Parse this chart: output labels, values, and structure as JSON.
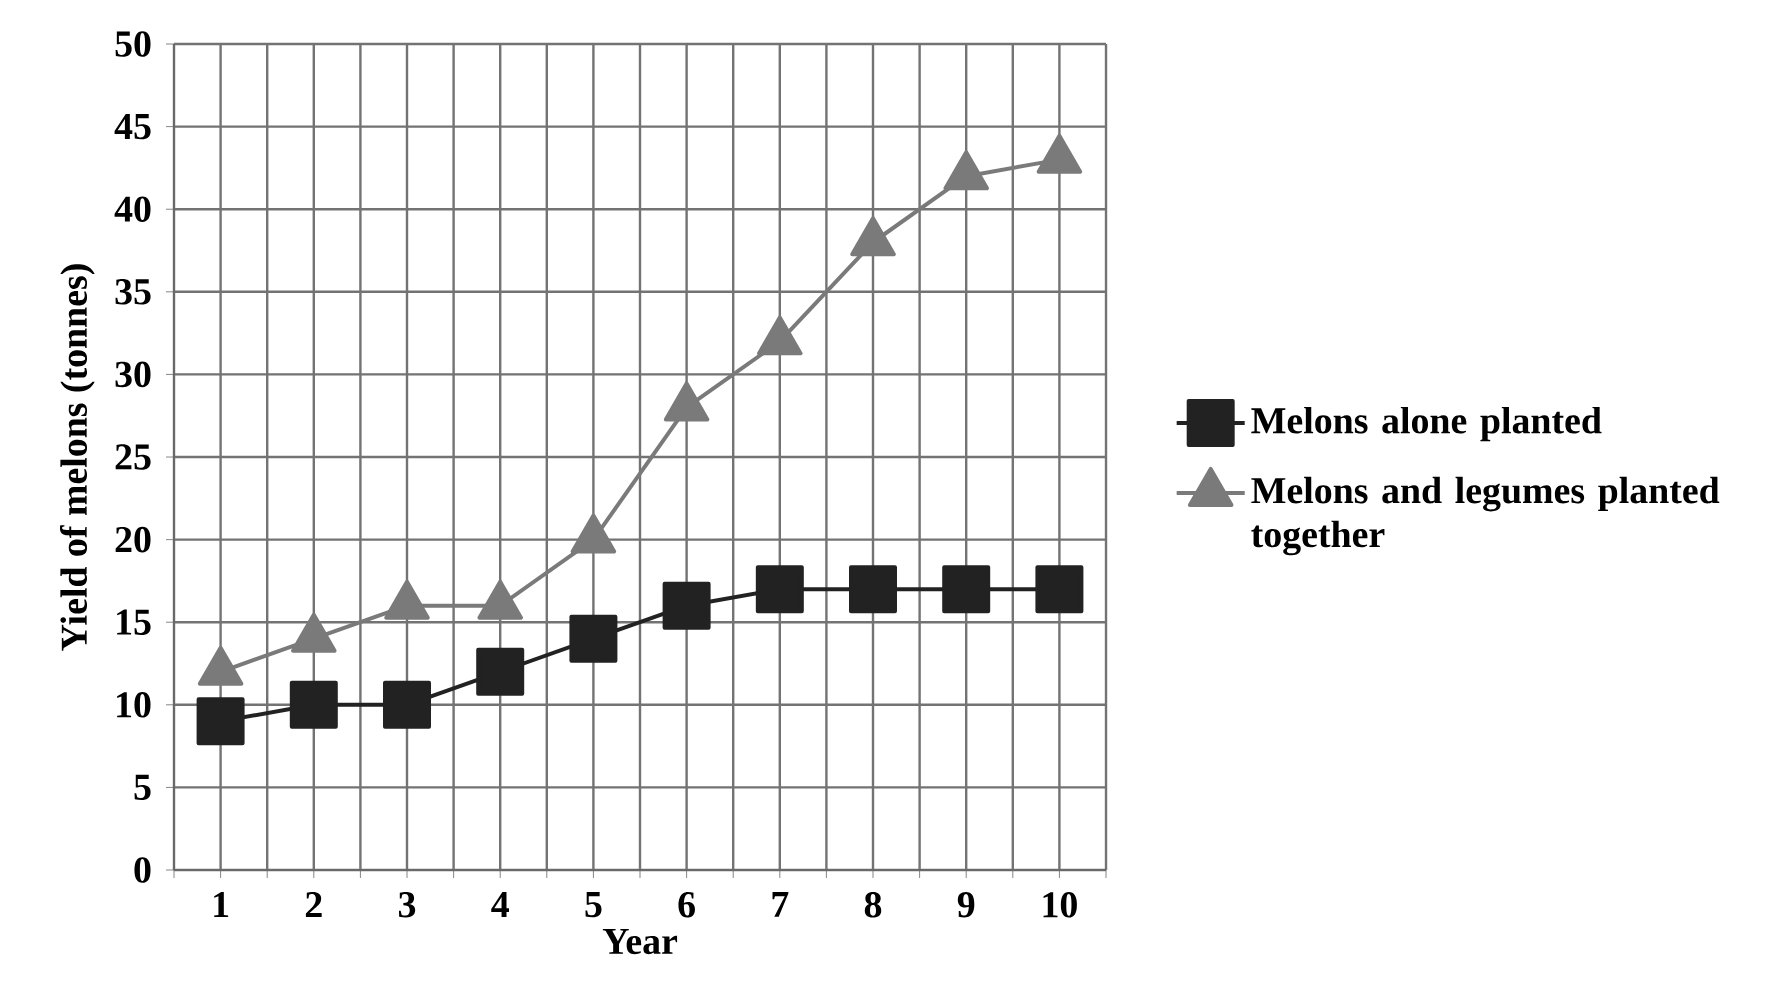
{
  "chart_data": {
    "type": "line",
    "xlabel": "Year",
    "ylabel": "Yield of melons (tonnes)",
    "x": [
      1,
      2,
      3,
      4,
      5,
      6,
      7,
      8,
      9,
      10
    ],
    "series": [
      {
        "name": "Melons alone planted",
        "color": "#222222",
        "marker": "square",
        "values": [
          9,
          10,
          10,
          12,
          14,
          16,
          17,
          17,
          17,
          17
        ]
      },
      {
        "name": "Melons and legumes planted together",
        "color": "#7a7a7a",
        "marker": "triangle",
        "values": [
          12,
          14,
          16,
          16,
          20,
          28,
          32,
          38,
          42,
          43
        ]
      }
    ],
    "xlim": [
      0.5,
      10.5
    ],
    "xticks": [
      {
        "value": 0.5,
        "label": null
      },
      1,
      {
        "value": 1.5,
        "label": null
      },
      2,
      {
        "value": 2.5,
        "label": null
      },
      3,
      {
        "value": 3.5,
        "label": null
      },
      4,
      {
        "value": 4.5,
        "label": null
      },
      5,
      {
        "value": 5.5,
        "label": null
      },
      6,
      {
        "value": 6.5,
        "label": null
      },
      7,
      {
        "value": 7.5,
        "label": null
      },
      8,
      {
        "value": 8.5,
        "label": null
      },
      9,
      {
        "value": 9.5,
        "label": null
      },
      10,
      {
        "value": 10.5,
        "label": null
      }
    ],
    "ylim": [
      0,
      50
    ],
    "yticks": [
      0,
      5,
      10,
      15,
      20,
      25,
      30,
      35,
      40,
      45,
      50
    ],
    "grid": true,
    "legend": "right",
    "line_style": "solid"
  }
}
